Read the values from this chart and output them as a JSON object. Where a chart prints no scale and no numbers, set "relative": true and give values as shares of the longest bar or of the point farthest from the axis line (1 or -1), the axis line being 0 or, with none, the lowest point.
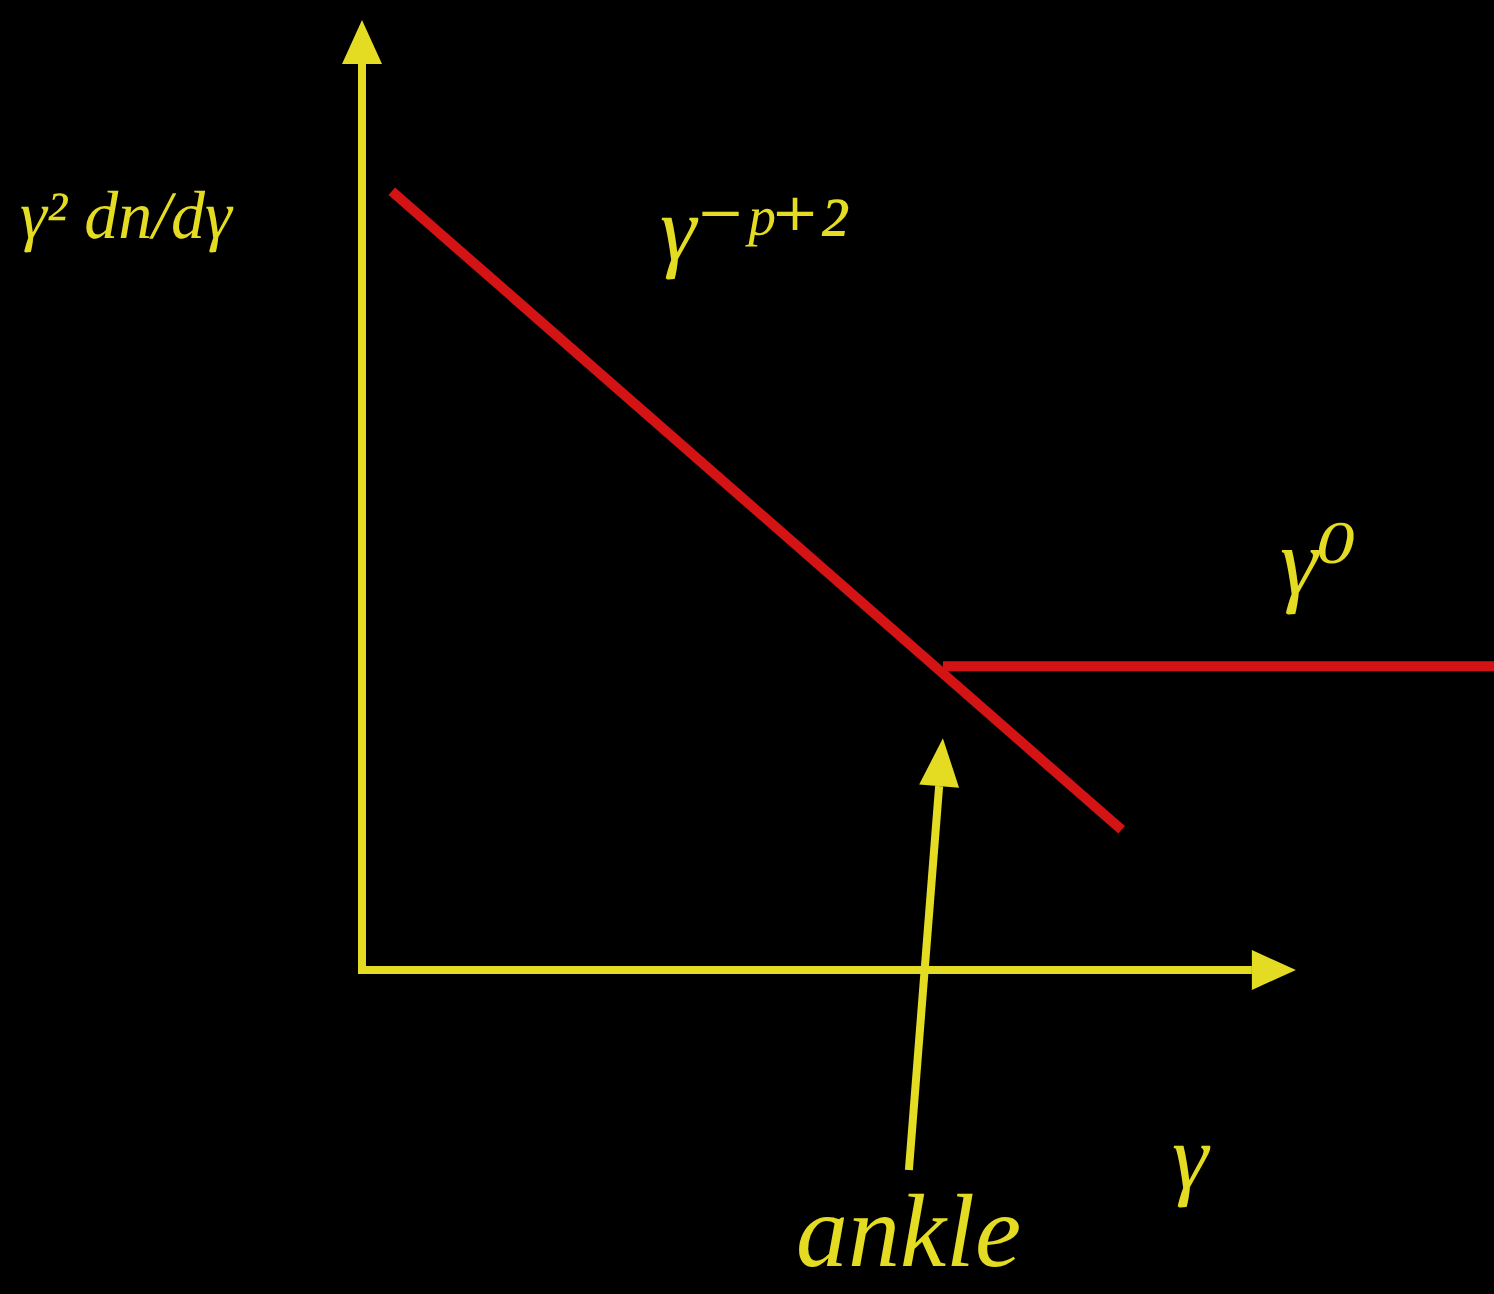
{
  "chart_data": {
    "type": "line",
    "relative": true,
    "ylabel": "γ² dn/dγ",
    "xlabel": "γ",
    "categories": [
      null,
      null,
      null,
      null,
      null,
      null,
      null,
      null,
      null,
      null,
      null,
      null,
      null,
      null,
      null,
      null,
      null,
      null,
      null,
      null,
      null,
      null,
      null,
      null,
      null,
      null,
      null,
      null,
      null,
      null,
      null,
      null,
      null,
      null,
      null,
      null,
      null,
      null,
      null,
      null,
      null,
      null,
      null,
      null,
      null,
      null,
      null,
      null,
      null,
      null,
      null,
      null,
      null,
      null,
      null,
      null,
      null,
      null,
      null,
      null,
      null,
      null,
      null,
      null,
      null,
      null,
      null,
      null,
      null,
      null,
      null,
      null,
      null,
      null,
      null,
      null,
      null
    ],
    "series": [
      {
        "name": "γ⁻ᵖ⁺²",
        "color": "#d41414",
        "values": [
          null,
          null,
          1,
          null,
          null,
          null,
          null,
          null,
          null,
          null,
          null,
          null,
          null,
          null,
          null,
          null,
          null,
          null,
          null,
          null,
          null,
          null,
          null,
          null,
          null,
          null,
          null,
          null,
          null,
          null,
          null,
          null,
          null,
          null,
          null,
          null,
          null,
          null,
          null,
          null,
          null,
          null,
          null,
          null,
          null,
          null,
          null,
          null,
          null,
          null,
          null,
          0.18,
          null,
          null,
          null,
          null,
          null,
          null,
          null,
          null,
          null,
          null,
          null,
          null,
          null,
          null,
          null,
          null,
          null,
          null,
          null,
          null,
          null,
          null,
          null,
          null,
          null
        ]
      },
      {
        "name": "γ⁰",
        "color": "#d41414",
        "values": [
          null,
          null,
          null,
          null,
          null,
          null,
          null,
          null,
          null,
          null,
          null,
          null,
          null,
          null,
          null,
          null,
          null,
          null,
          null,
          null,
          null,
          null,
          null,
          null,
          null,
          null,
          null,
          null,
          null,
          null,
          null,
          null,
          null,
          null,
          null,
          null,
          null,
          null,
          null,
          0.39,
          null,
          null,
          null,
          null,
          null,
          null,
          null,
          null,
          null,
          null,
          null,
          null,
          null,
          null,
          null,
          null,
          null,
          null,
          null,
          null,
          null,
          null,
          null,
          null,
          null,
          null,
          null,
          null,
          null,
          null,
          null,
          null,
          null,
          null,
          null,
          null,
          0.39
        ]
      }
    ],
    "annotations": [
      "ankle"
    ]
  }
}
